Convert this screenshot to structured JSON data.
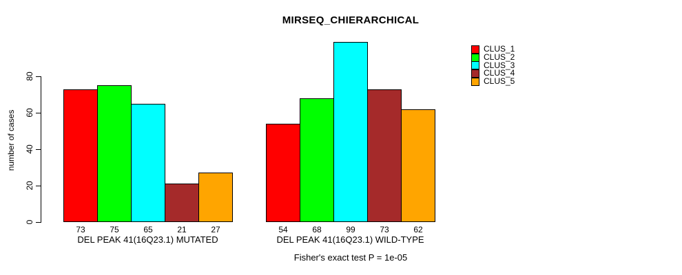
{
  "chart_data": {
    "type": "bar",
    "title": "MIRSEQ_CHIERARCHICAL",
    "ylabel": "number of cases",
    "xlabel": "",
    "annotation": "Fisher's exact test P = 1e-05",
    "yticks": [
      0,
      20,
      40,
      60,
      80
    ],
    "ylim": [
      0,
      100
    ],
    "grid": false,
    "legend_position": "right-outside-top",
    "bar_value_labels_shown": true,
    "series": [
      {
        "name": "CLUS_1",
        "color": "#FF0000"
      },
      {
        "name": "CLUS_2",
        "color": "#00FF00"
      },
      {
        "name": "CLUS_3",
        "color": "#00FFFF"
      },
      {
        "name": "CLUS_4",
        "color": "#A52A2A"
      },
      {
        "name": "CLUS_5",
        "color": "#FFA500"
      }
    ],
    "groups": [
      {
        "label": "DEL PEAK 41(16Q23.1) MUTATED",
        "values": [
          73,
          75,
          65,
          21,
          27
        ]
      },
      {
        "label": "DEL PEAK 41(16Q23.1) WILD-TYPE",
        "values": [
          54,
          68,
          99,
          73,
          62
        ]
      }
    ]
  }
}
